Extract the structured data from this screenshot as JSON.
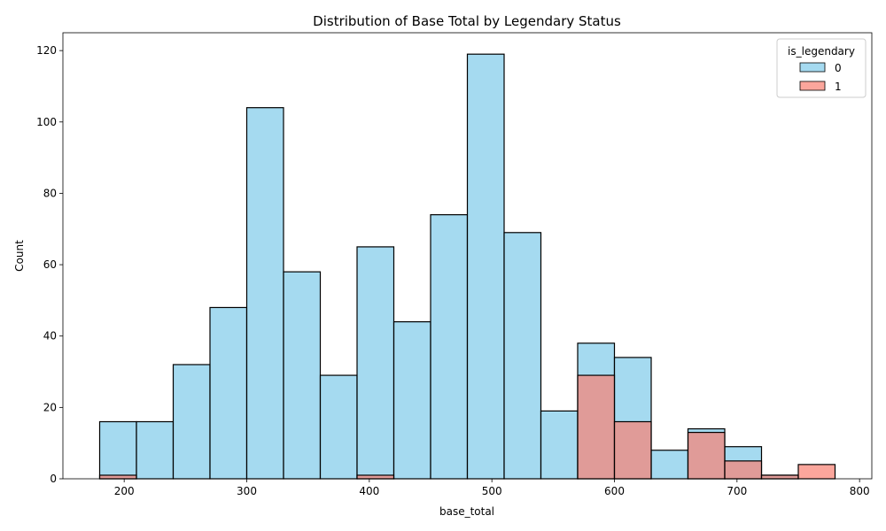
{
  "chart_data": {
    "type": "bar",
    "title": "Distribution of Base Total by Legendary Status",
    "xlabel": "base_total",
    "ylabel": "Count",
    "xlim": [
      150,
      810
    ],
    "ylim": [
      0,
      125
    ],
    "xticks": [
      200,
      300,
      400,
      500,
      600,
      700,
      800
    ],
    "yticks": [
      0,
      20,
      40,
      60,
      80,
      100,
      120
    ],
    "grid": false,
    "legend": {
      "title": "is_legendary",
      "placement": "top-right"
    },
    "bin_edges": [
      180,
      210,
      240,
      270,
      300,
      330,
      360,
      390,
      420,
      450,
      480,
      510,
      540,
      570,
      600,
      630,
      660,
      690,
      720,
      750,
      780
    ],
    "series": [
      {
        "name": "0",
        "color": "#87ceeb",
        "values": [
          16,
          16,
          32,
          48,
          104,
          58,
          29,
          65,
          44,
          74,
          119,
          69,
          19,
          38,
          34,
          8,
          14,
          9,
          1,
          0
        ]
      },
      {
        "name": "1",
        "color": "#fa8072",
        "values": [
          1,
          0,
          0,
          0,
          0,
          0,
          0,
          1,
          0,
          0,
          0,
          0,
          0,
          29,
          16,
          0,
          13,
          5,
          1,
          4
        ]
      }
    ]
  }
}
